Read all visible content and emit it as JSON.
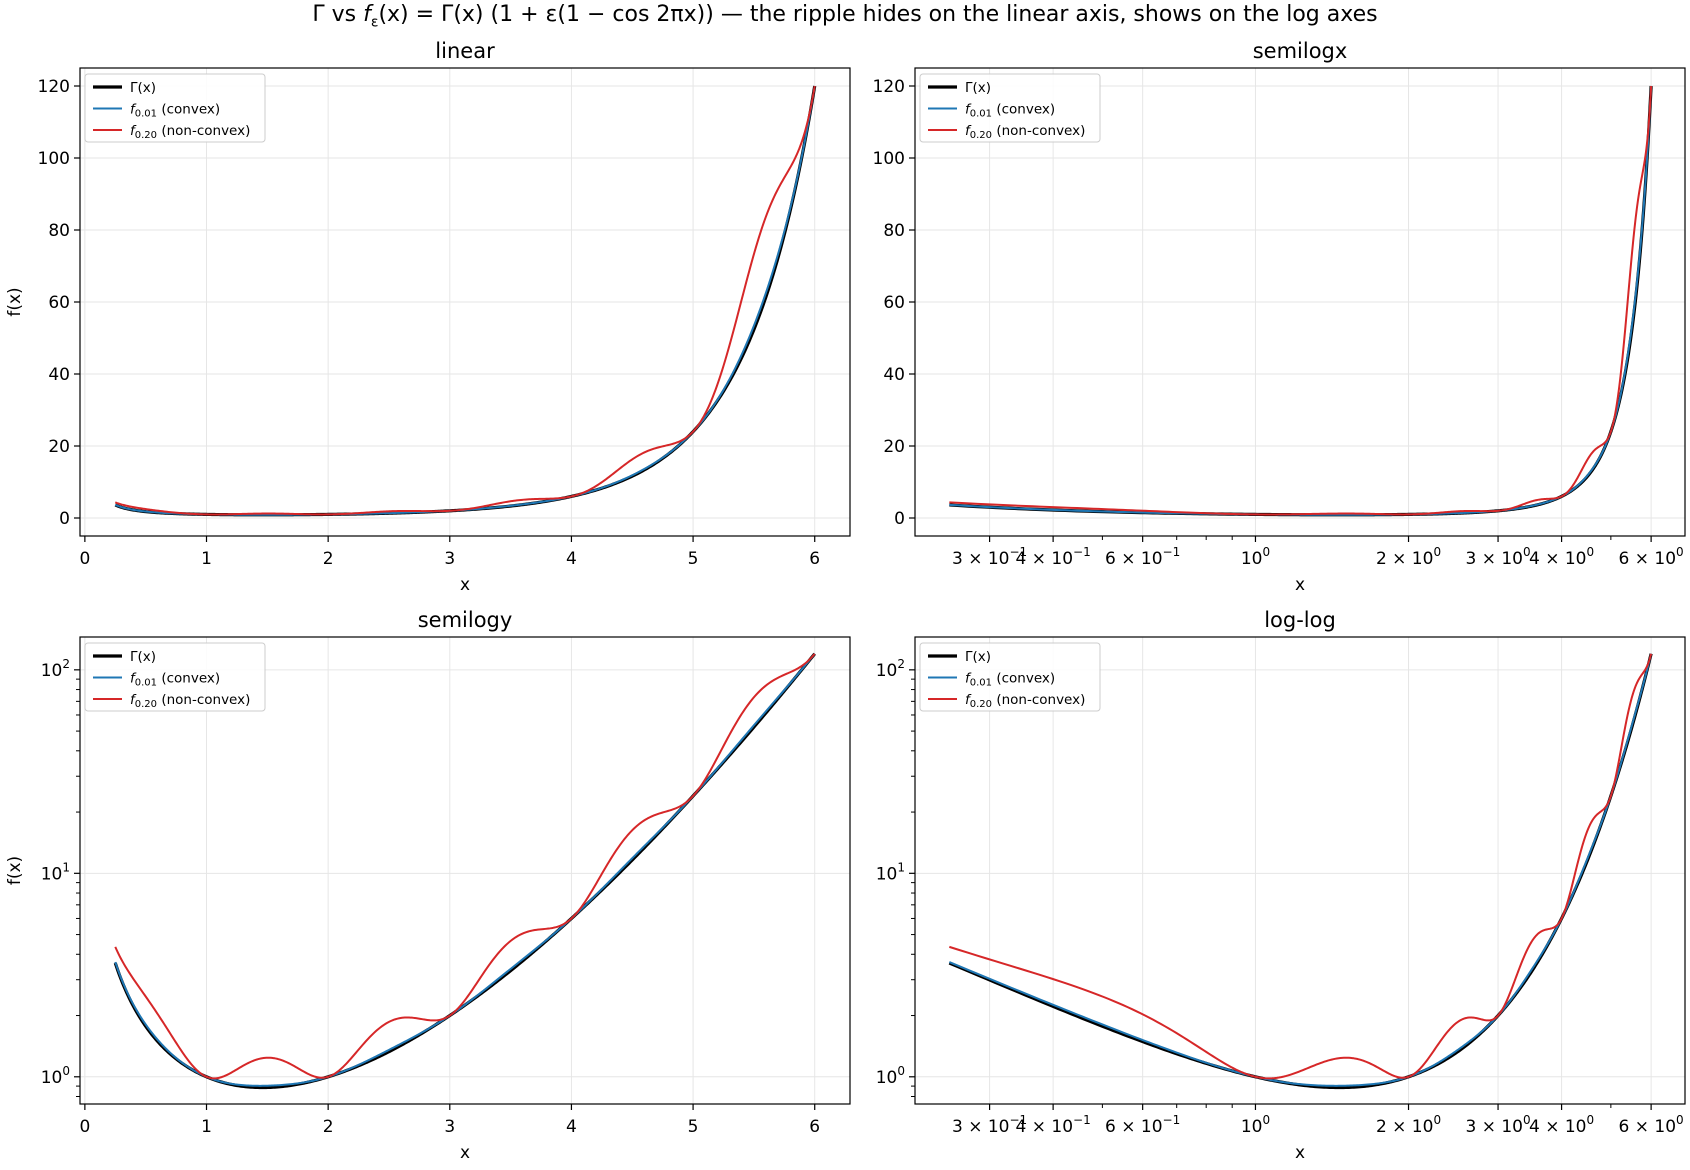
{
  "figure": {
    "title": "Γ vs f_ε(x) = Γ(x) (1 + ε(1 − cos 2πx))  —  the ripple hides on the linear axis, shows on the log axes",
    "title_parts": {
      "lead": "Γ vs ",
      "f": "f",
      "sub": "ε",
      "formula": "(x) = Γ(x) (1 + ε(1 − cos 2πx))",
      "tail": "  —  the ripple hides on the linear axis, shows on the log axes"
    }
  },
  "colors": {
    "gamma": "#000000",
    "convex": "#1f77b4",
    "nonconvex": "#d62728",
    "grid": "#e6e6e6"
  },
  "chart_data": [
    {
      "type": "line",
      "title": "linear",
      "xlabel": "x",
      "ylabel": "f(x)",
      "xscale": "linear",
      "yscale": "linear",
      "xlim": [
        -0.04,
        6.29
      ],
      "ylim": [
        -5,
        125
      ],
      "xticks": [
        0,
        1,
        2,
        3,
        4,
        5,
        6
      ],
      "xtick_labels": [
        "0",
        "1",
        "2",
        "3",
        "4",
        "5",
        "6"
      ],
      "yticks": [
        0,
        20,
        40,
        60,
        80,
        100,
        120
      ],
      "ytick_labels": [
        "0",
        "20",
        "40",
        "60",
        "80",
        "100",
        "120"
      ],
      "grid": true,
      "legend_position": "upper-left",
      "legend": [
        {
          "key": "gamma",
          "label": "Γ(x)",
          "f": "",
          "sub": ""
        },
        {
          "key": "convex",
          "label": " (convex)",
          "f": "f",
          "sub": "0.01"
        },
        {
          "key": "nonconvex",
          "label": " (non-convex)",
          "f": "f",
          "sub": "0.20"
        }
      ],
      "x_range": [
        0.25,
        6.0
      ],
      "series": [
        {
          "key": "gamma",
          "epsilon": 0
        },
        {
          "key": "convex",
          "epsilon": 0.01
        },
        {
          "key": "nonconvex",
          "epsilon": 0.2
        }
      ]
    },
    {
      "type": "line",
      "title": "semilogx",
      "xlabel": "x",
      "ylabel": "",
      "xscale": "log",
      "yscale": "linear",
      "xlim": [
        0.214,
        6.995
      ],
      "ylim": [
        -5,
        125
      ],
      "xticks": [
        0.3,
        0.4,
        0.6,
        1,
        2,
        3,
        4,
        6
      ],
      "xtick_labels": [
        "3 × 10⁻¹",
        "4 × 10⁻¹",
        "6 × 10⁻¹",
        "10⁰",
        "2 × 10⁰",
        "3 × 10⁰",
        "4 × 10⁰",
        "6 × 10⁰"
      ],
      "yticks": [
        0,
        20,
        40,
        60,
        80,
        100,
        120
      ],
      "ytick_labels": [
        "0",
        "20",
        "40",
        "60",
        "80",
        "100",
        "120"
      ],
      "grid": true,
      "legend_position": "upper-left",
      "legend": [
        {
          "key": "gamma",
          "label": "Γ(x)",
          "f": "",
          "sub": ""
        },
        {
          "key": "convex",
          "label": " (convex)",
          "f": "f",
          "sub": "0.01"
        },
        {
          "key": "nonconvex",
          "label": " (non-convex)",
          "f": "f",
          "sub": "0.20"
        }
      ],
      "x_range": [
        0.25,
        6.0
      ],
      "series": [
        {
          "key": "gamma",
          "epsilon": 0
        },
        {
          "key": "convex",
          "epsilon": 0.01
        },
        {
          "key": "nonconvex",
          "epsilon": 0.2
        }
      ]
    },
    {
      "type": "line",
      "title": "semilogy",
      "xlabel": "x",
      "ylabel": "f(x)",
      "xscale": "linear",
      "yscale": "log",
      "xlim": [
        -0.04,
        6.29
      ],
      "ylim": [
        0.735,
        145
      ],
      "xticks": [
        0,
        1,
        2,
        3,
        4,
        5,
        6
      ],
      "xtick_labels": [
        "0",
        "1",
        "2",
        "3",
        "4",
        "5",
        "6"
      ],
      "yticks": [
        1,
        10,
        100
      ],
      "ytick_labels": [
        "10⁰",
        "10¹",
        "10²"
      ],
      "grid": true,
      "legend_position": "upper-left",
      "legend": [
        {
          "key": "gamma",
          "label": "Γ(x)",
          "f": "",
          "sub": ""
        },
        {
          "key": "convex",
          "label": " (convex)",
          "f": "f",
          "sub": "0.01"
        },
        {
          "key": "nonconvex",
          "label": " (non-convex)",
          "f": "f",
          "sub": "0.20"
        }
      ],
      "x_range": [
        0.25,
        6.0
      ],
      "series": [
        {
          "key": "gamma",
          "epsilon": 0
        },
        {
          "key": "convex",
          "epsilon": 0.01
        },
        {
          "key": "nonconvex",
          "epsilon": 0.2
        }
      ]
    },
    {
      "type": "line",
      "title": "log-log",
      "xlabel": "x",
      "ylabel": "",
      "xscale": "log",
      "yscale": "log",
      "xlim": [
        0.214,
        6.995
      ],
      "ylim": [
        0.735,
        145
      ],
      "xticks": [
        0.3,
        0.4,
        0.6,
        1,
        2,
        3,
        4,
        6
      ],
      "xtick_labels": [
        "3 × 10⁻¹",
        "4 × 10⁻¹",
        "6 × 10⁻¹",
        "10⁰",
        "2 × 10⁰",
        "3 × 10⁰",
        "4 × 10⁰",
        "6 × 10⁰"
      ],
      "yticks": [
        1,
        10,
        100
      ],
      "ytick_labels": [
        "10⁰",
        "10¹",
        "10²"
      ],
      "grid": true,
      "legend_position": "upper-left",
      "legend": [
        {
          "key": "gamma",
          "label": "Γ(x)",
          "f": "",
          "sub": ""
        },
        {
          "key": "convex",
          "label": " (convex)",
          "f": "f",
          "sub": "0.01"
        },
        {
          "key": "nonconvex",
          "label": " (non-convex)",
          "f": "f",
          "sub": "0.20"
        }
      ],
      "x_range": [
        0.25,
        6.0
      ],
      "series": [
        {
          "key": "gamma",
          "epsilon": 0
        },
        {
          "key": "convex",
          "epsilon": 0.01
        },
        {
          "key": "nonconvex",
          "epsilon": 0.2
        }
      ]
    }
  ]
}
